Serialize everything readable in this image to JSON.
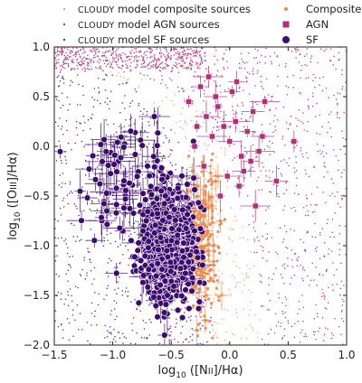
{
  "chart_data": {
    "type": "scatter",
    "xlabel": "log10 ([NII]/Hα)",
    "ylabel": "log10 ([OIII]/Hα)",
    "axis_label_parts": {
      "log": "log",
      "sub": "10",
      "x_species": "[N",
      "x_roman": "II",
      "x_tail": "]/Hα)",
      "y_species": "[O",
      "y_roman": "III",
      "y_tail": "]/Hα)"
    },
    "xlim": [
      -1.5,
      1.0
    ],
    "ylim": [
      -2.0,
      1.0
    ],
    "xticks": [
      -1.5,
      -1.0,
      -0.5,
      0.0,
      0.5,
      1.0
    ],
    "yticks": [
      -2.0,
      -1.5,
      -1.0,
      -0.5,
      0.0,
      0.5,
      1.0
    ],
    "xtick_labels": [
      "−1.5",
      "−1.0",
      "−0.5",
      "0.0",
      "0.5",
      "1.0"
    ],
    "ytick_labels": [
      "−2.0",
      "−1.5",
      "−1.0",
      "−0.5",
      "0.0",
      "0.5",
      "1.0"
    ],
    "grid": false,
    "legend_left": [
      {
        "prefix": "CLOUDY",
        "text": " model composite sources",
        "color": "#f4a582",
        "marker": "dot"
      },
      {
        "prefix": "CLOUDY",
        "text": " model AGN sources",
        "color": "#b2337d",
        "marker": "dot"
      },
      {
        "prefix": "CLOUDY",
        "text": " model SF sources",
        "color": "#5b2a9e",
        "marker": "dot"
      }
    ],
    "legend_right": [
      {
        "text": "Composite",
        "color": "#f08a50",
        "marker": "small-dot"
      },
      {
        "text": "AGN",
        "color": "#b02e7a",
        "marker": "square"
      },
      {
        "text": "SF",
        "color": "#3d0f70",
        "marker": "circle"
      }
    ],
    "colors": {
      "model_composite": "#f5a47a",
      "model_agn": "#c0397e",
      "model_sf": "#5a23a0",
      "composite": "#f28a4c",
      "agn": "#b02e7a",
      "sf": "#3b0c6e"
    },
    "series": [
      {
        "name": "Composite",
        "x": [
          -0.34,
          -0.3,
          -0.28,
          -0.25,
          -0.22,
          -0.2,
          -0.18,
          -0.15,
          -0.32,
          -0.27,
          -0.24,
          -0.21,
          -0.36,
          -0.29,
          -0.19,
          -0.12,
          -0.08,
          -0.26,
          -0.23,
          -0.31,
          -0.17,
          -0.14,
          -0.33,
          -0.28,
          -0.22,
          -0.1
        ],
        "y": [
          -0.95,
          -1.1,
          -0.8,
          -1.3,
          -0.7,
          -1.5,
          -1.05,
          -0.6,
          -1.2,
          -0.4,
          -0.9,
          -1.75,
          -0.55,
          -1.4,
          -0.85,
          -0.35,
          -0.75,
          -1.6,
          -0.2,
          -0.65,
          -1.25,
          -1.0,
          -0.45,
          -1.85,
          -1.15,
          -0.3
        ]
      },
      {
        "name": "AGN",
        "x": [
          -0.35,
          -0.25,
          -0.2,
          -0.15,
          -0.1,
          -0.05,
          0.0,
          0.05,
          0.1,
          0.15,
          0.2,
          0.25,
          -0.3,
          -0.22,
          -0.12,
          -0.02,
          0.08,
          0.18,
          0.28,
          -0.18,
          -0.08,
          0.02,
          0.12,
          0.22,
          -0.28,
          0.06,
          0.4,
          0.3,
          0.55
        ],
        "y": [
          0.45,
          0.6,
          0.3,
          0.1,
          0.4,
          0.2,
          0.05,
          0.25,
          -0.1,
          0.15,
          0.35,
          -0.05,
          0.0,
          -0.2,
          0.5,
          -0.3,
          -0.4,
          -0.15,
          0.1,
          0.7,
          -0.5,
          0.55,
          -0.25,
          -0.6,
          0.2,
          0.65,
          -0.35,
          0.45,
          0.05
        ]
      }
    ]
  }
}
